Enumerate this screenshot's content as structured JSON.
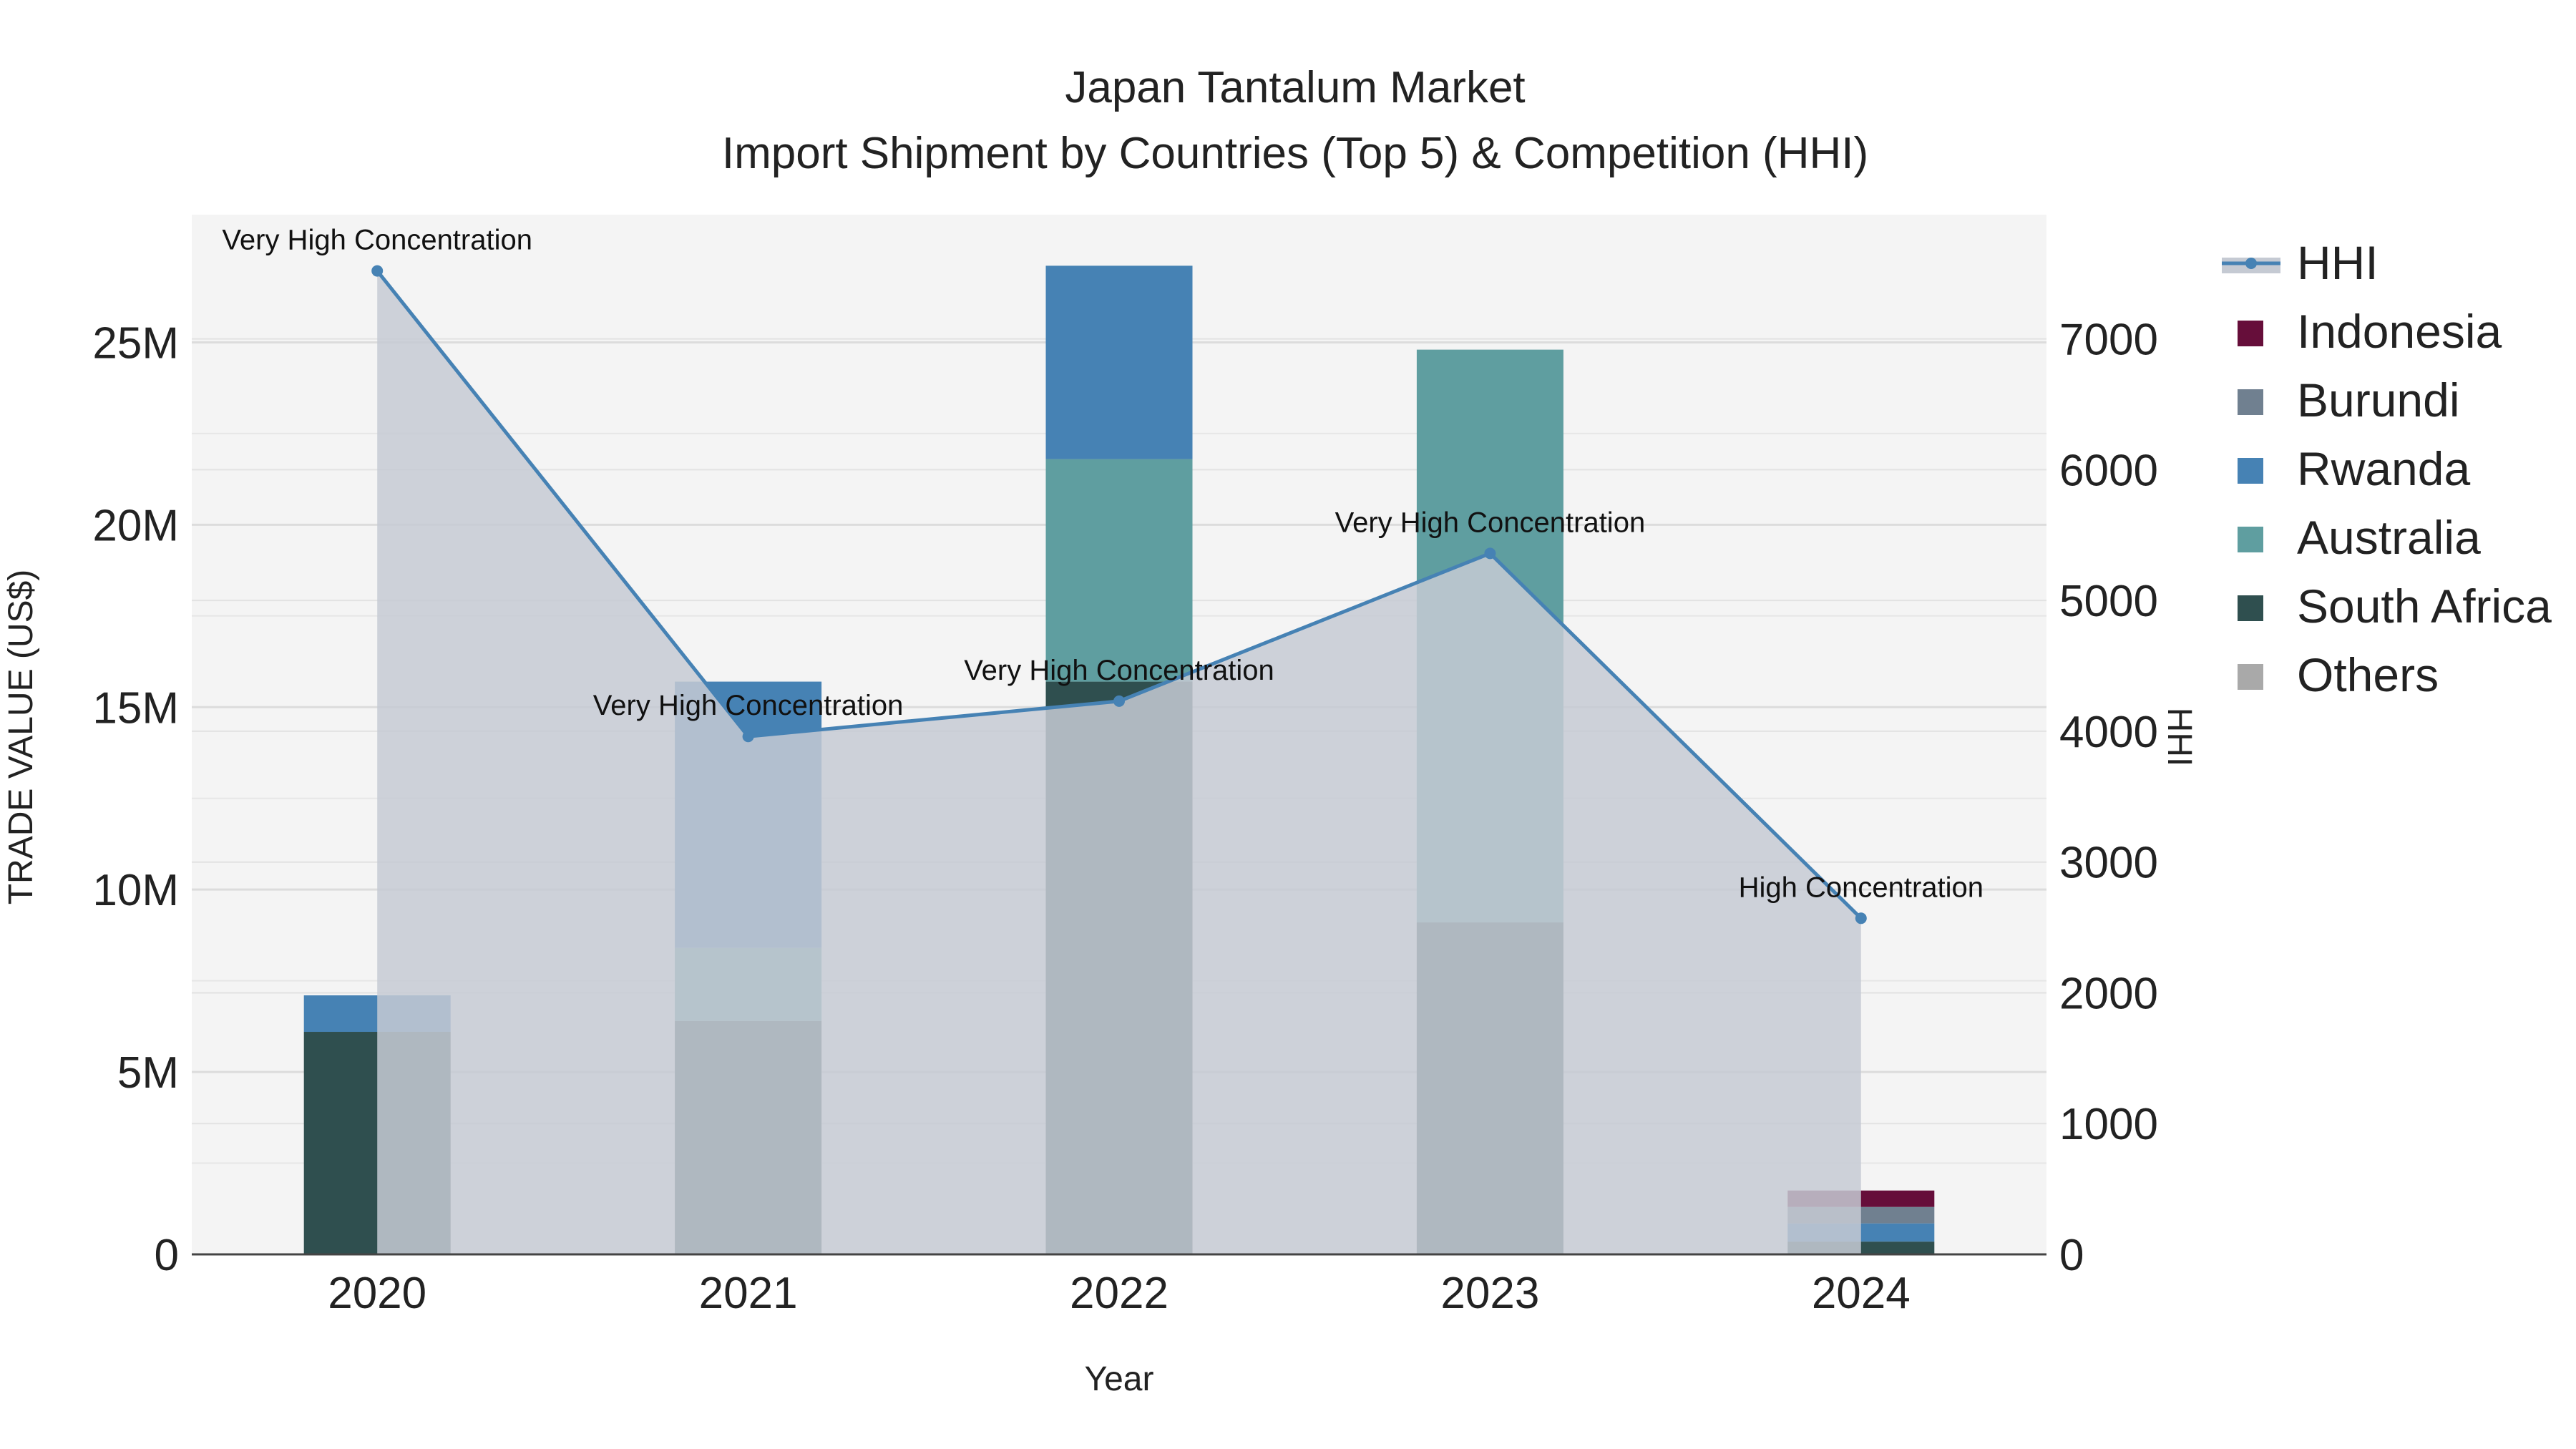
{
  "chart_data": {
    "type": "bar",
    "title": "Japan Tantalum Market",
    "subtitle": "Import Shipment by Countries (Top 5) & Competition (HHI)",
    "xlabel": "Year",
    "ylabel": "TRADE VALUE (US$)",
    "y2label": "HHI",
    "categories": [
      "2020",
      "2021",
      "2022",
      "2023",
      "2024"
    ],
    "ylim": [
      0,
      28500000
    ],
    "y2lim": [
      0,
      7950
    ],
    "yticks": [
      0,
      5000000,
      10000000,
      15000000,
      20000000,
      25000000
    ],
    "ytick_labels": [
      "0",
      "5M",
      "10M",
      "15M",
      "20M",
      "25M"
    ],
    "y2ticks": [
      0,
      1000,
      2000,
      3000,
      4000,
      5000,
      6000,
      7000
    ],
    "y2tick_labels": [
      "0",
      "1000",
      "2000",
      "3000",
      "4000",
      "5000",
      "6000",
      "7000"
    ],
    "grid": true,
    "legend_position": "right",
    "series": [
      {
        "name": "South Africa",
        "color": "#2f4f4f",
        "values": [
          6100000,
          6400000,
          15700000,
          9100000,
          350000
        ]
      },
      {
        "name": "Australia",
        "color": "#5f9ea0",
        "values": [
          0,
          2000000,
          6100000,
          15700000,
          0
        ]
      },
      {
        "name": "Rwanda",
        "color": "#4682b4",
        "values": [
          1000000,
          7300000,
          5300000,
          0,
          500000
        ]
      },
      {
        "name": "Burundi",
        "color": "#708090",
        "values": [
          0,
          0,
          0,
          0,
          450000
        ]
      },
      {
        "name": "Indonesia",
        "color": "#660e3a",
        "values": [
          0,
          0,
          0,
          0,
          450000
        ]
      },
      {
        "name": "Others",
        "color": "#a9a9a9",
        "values": [
          0,
          0,
          0,
          0,
          0
        ]
      }
    ],
    "hhi": {
      "name": "HHI",
      "color": "#4682b4",
      "fill_color": "#c5cad3",
      "values": [
        7520,
        3960,
        4230,
        5360,
        2570
      ],
      "labels": [
        "Very High Concentration",
        "Very High Concentration",
        "Very High Concentration",
        "Very High Concentration",
        "High Concentration"
      ]
    },
    "legend_order": [
      "HHI",
      "Indonesia",
      "Burundi",
      "Rwanda",
      "Australia",
      "South Africa",
      "Others"
    ]
  }
}
